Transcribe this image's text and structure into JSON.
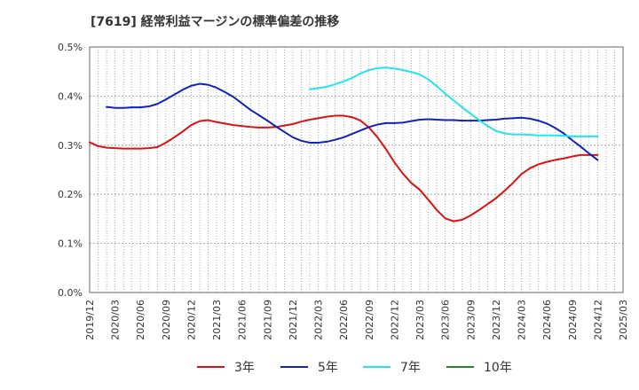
{
  "chart_data": {
    "type": "line",
    "title": "[7619]  経常利益マージンの標準偏差の推移",
    "xlabel": "",
    "ylabel": "",
    "y_ticks": [
      "0.0%",
      "0.1%",
      "0.2%",
      "0.3%",
      "0.4%",
      "0.5%"
    ],
    "ylim": [
      0,
      0.5
    ],
    "y_unit": "%",
    "x_ticks": [
      "2019/12",
      "2020/03",
      "2020/06",
      "2020/09",
      "2020/12",
      "2021/03",
      "2021/06",
      "2021/09",
      "2021/12",
      "2022/03",
      "2022/06",
      "2022/09",
      "2022/12",
      "2023/03",
      "2023/06",
      "2023/09",
      "2023/12",
      "2024/03",
      "2024/06",
      "2024/09",
      "2024/12",
      "2025/03"
    ],
    "xlim": [
      "2019/12",
      "2025/03"
    ],
    "grid": true,
    "legend_position": "bottom",
    "series": [
      {
        "name": "3年",
        "color": "#dd1111",
        "points": [
          [
            "2019/12",
            0.306
          ],
          [
            "2020/01",
            0.298
          ],
          [
            "2020/02",
            0.295
          ],
          [
            "2020/03",
            0.294
          ],
          [
            "2020/04",
            0.293
          ],
          [
            "2020/05",
            0.293
          ],
          [
            "2020/06",
            0.293
          ],
          [
            "2020/07",
            0.294
          ],
          [
            "2020/08",
            0.296
          ],
          [
            "2020/09",
            0.305
          ],
          [
            "2020/10",
            0.316
          ],
          [
            "2020/11",
            0.328
          ],
          [
            "2020/12",
            0.341
          ],
          [
            "2021/01",
            0.349
          ],
          [
            "2021/02",
            0.351
          ],
          [
            "2021/03",
            0.347
          ],
          [
            "2021/04",
            0.344
          ],
          [
            "2021/05",
            0.341
          ],
          [
            "2021/06",
            0.339
          ],
          [
            "2021/07",
            0.337
          ],
          [
            "2021/08",
            0.336
          ],
          [
            "2021/09",
            0.336
          ],
          [
            "2021/10",
            0.337
          ],
          [
            "2021/11",
            0.34
          ],
          [
            "2021/12",
            0.343
          ],
          [
            "2022/01",
            0.348
          ],
          [
            "2022/02",
            0.352
          ],
          [
            "2022/03",
            0.355
          ],
          [
            "2022/04",
            0.358
          ],
          [
            "2022/05",
            0.36
          ],
          [
            "2022/06",
            0.36
          ],
          [
            "2022/07",
            0.357
          ],
          [
            "2022/08",
            0.35
          ],
          [
            "2022/09",
            0.336
          ],
          [
            "2022/10",
            0.316
          ],
          [
            "2022/11",
            0.292
          ],
          [
            "2022/12",
            0.265
          ],
          [
            "2023/01",
            0.242
          ],
          [
            "2023/02",
            0.223
          ],
          [
            "2023/03",
            0.209
          ],
          [
            "2023/04",
            0.189
          ],
          [
            "2023/05",
            0.168
          ],
          [
            "2023/06",
            0.151
          ],
          [
            "2023/07",
            0.145
          ],
          [
            "2023/08",
            0.148
          ],
          [
            "2023/09",
            0.157
          ],
          [
            "2023/10",
            0.168
          ],
          [
            "2023/11",
            0.18
          ],
          [
            "2023/12",
            0.192
          ],
          [
            "2024/01",
            0.207
          ],
          [
            "2024/02",
            0.223
          ],
          [
            "2024/03",
            0.241
          ],
          [
            "2024/04",
            0.253
          ],
          [
            "2024/05",
            0.261
          ],
          [
            "2024/06",
            0.266
          ],
          [
            "2024/07",
            0.27
          ],
          [
            "2024/08",
            0.273
          ],
          [
            "2024/09",
            0.277
          ],
          [
            "2024/10",
            0.28
          ],
          [
            "2024/11",
            0.28
          ],
          [
            "2024/12",
            0.28
          ]
        ]
      },
      {
        "name": "5年",
        "color": "#1122bb",
        "points": [
          [
            "2020/02",
            0.378
          ],
          [
            "2020/03",
            0.376
          ],
          [
            "2020/04",
            0.376
          ],
          [
            "2020/05",
            0.377
          ],
          [
            "2020/06",
            0.377
          ],
          [
            "2020/07",
            0.379
          ],
          [
            "2020/08",
            0.384
          ],
          [
            "2020/09",
            0.393
          ],
          [
            "2020/10",
            0.403
          ],
          [
            "2020/11",
            0.413
          ],
          [
            "2020/12",
            0.421
          ],
          [
            "2021/01",
            0.425
          ],
          [
            "2021/02",
            0.423
          ],
          [
            "2021/03",
            0.417
          ],
          [
            "2021/04",
            0.408
          ],
          [
            "2021/05",
            0.398
          ],
          [
            "2021/06",
            0.385
          ],
          [
            "2021/07",
            0.372
          ],
          [
            "2021/08",
            0.361
          ],
          [
            "2021/09",
            0.35
          ],
          [
            "2021/10",
            0.338
          ],
          [
            "2021/11",
            0.327
          ],
          [
            "2021/12",
            0.316
          ],
          [
            "2022/01",
            0.309
          ],
          [
            "2022/02",
            0.305
          ],
          [
            "2022/03",
            0.305
          ],
          [
            "2022/04",
            0.307
          ],
          [
            "2022/05",
            0.311
          ],
          [
            "2022/06",
            0.316
          ],
          [
            "2022/07",
            0.323
          ],
          [
            "2022/08",
            0.33
          ],
          [
            "2022/09",
            0.337
          ],
          [
            "2022/10",
            0.342
          ],
          [
            "2022/11",
            0.345
          ],
          [
            "2022/12",
            0.345
          ],
          [
            "2023/01",
            0.346
          ],
          [
            "2023/02",
            0.349
          ],
          [
            "2023/03",
            0.352
          ],
          [
            "2023/04",
            0.353
          ],
          [
            "2023/05",
            0.352
          ],
          [
            "2023/06",
            0.351
          ],
          [
            "2023/07",
            0.351
          ],
          [
            "2023/08",
            0.35
          ],
          [
            "2023/09",
            0.35
          ],
          [
            "2023/10",
            0.35
          ],
          [
            "2023/11",
            0.351
          ],
          [
            "2023/12",
            0.352
          ],
          [
            "2024/01",
            0.354
          ],
          [
            "2024/02",
            0.355
          ],
          [
            "2024/03",
            0.356
          ],
          [
            "2024/04",
            0.354
          ],
          [
            "2024/05",
            0.35
          ],
          [
            "2024/06",
            0.344
          ],
          [
            "2024/07",
            0.335
          ],
          [
            "2024/08",
            0.324
          ],
          [
            "2024/09",
            0.31
          ],
          [
            "2024/10",
            0.297
          ],
          [
            "2024/11",
            0.283
          ],
          [
            "2024/12",
            0.27
          ]
        ]
      },
      {
        "name": "7年",
        "color": "#22e5ee",
        "points": [
          [
            "2022/02",
            0.414
          ],
          [
            "2022/03",
            0.416
          ],
          [
            "2022/04",
            0.419
          ],
          [
            "2022/05",
            0.424
          ],
          [
            "2022/06",
            0.43
          ],
          [
            "2022/07",
            0.437
          ],
          [
            "2022/08",
            0.446
          ],
          [
            "2022/09",
            0.453
          ],
          [
            "2022/10",
            0.457
          ],
          [
            "2022/11",
            0.458
          ],
          [
            "2022/12",
            0.456
          ],
          [
            "2023/01",
            0.453
          ],
          [
            "2023/02",
            0.449
          ],
          [
            "2023/03",
            0.444
          ],
          [
            "2023/04",
            0.434
          ],
          [
            "2023/05",
            0.42
          ],
          [
            "2023/06",
            0.405
          ],
          [
            "2023/07",
            0.391
          ],
          [
            "2023/08",
            0.377
          ],
          [
            "2023/09",
            0.364
          ],
          [
            "2023/10",
            0.351
          ],
          [
            "2023/11",
            0.339
          ],
          [
            "2023/12",
            0.329
          ],
          [
            "2024/01",
            0.324
          ],
          [
            "2024/02",
            0.322
          ],
          [
            "2024/03",
            0.322
          ],
          [
            "2024/04",
            0.321
          ],
          [
            "2024/05",
            0.32
          ],
          [
            "2024/06",
            0.32
          ],
          [
            "2024/07",
            0.32
          ],
          [
            "2024/08",
            0.319
          ],
          [
            "2024/09",
            0.318
          ],
          [
            "2024/10",
            0.318
          ],
          [
            "2024/11",
            0.318
          ],
          [
            "2024/12",
            0.318
          ]
        ]
      },
      {
        "name": "10年",
        "color": "#228822",
        "points": []
      }
    ]
  }
}
